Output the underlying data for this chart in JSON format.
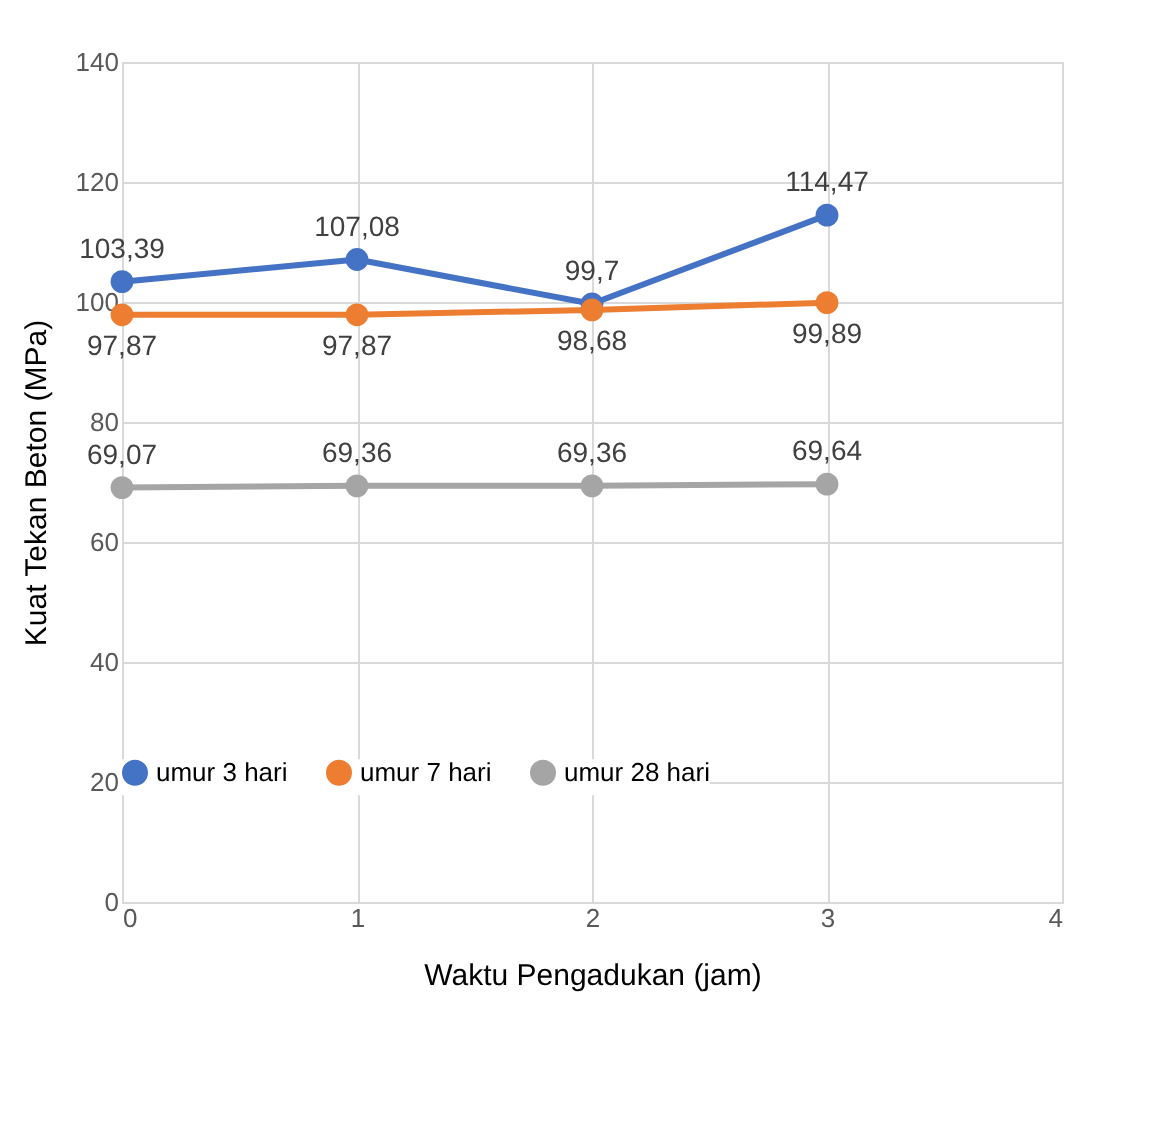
{
  "chart_data": {
    "type": "line",
    "xlabel": "Waktu Pengadukan (jam)",
    "ylabel": "Kuat Tekan Beton (MPa)",
    "x": [
      0,
      1,
      2,
      3
    ],
    "xlim": [
      0,
      4
    ],
    "xticks": [
      0,
      1,
      2,
      3,
      4
    ],
    "ylim": [
      0,
      140
    ],
    "yticks": [
      0,
      20,
      40,
      60,
      80,
      100,
      120,
      140
    ],
    "grid": true,
    "legend": "bottom",
    "marker": "circle",
    "line_style": "solid",
    "series": [
      {
        "name": "umur 3 hari",
        "color": "#4472c4",
        "values": [
          103.39,
          107.08,
          99.7,
          114.47
        ],
        "value_labels": [
          "103,39",
          "107,08",
          "99,7",
          "114,47"
        ]
      },
      {
        "name": "umur 7 hari",
        "color": "#ed7d31",
        "values": [
          97.87,
          97.87,
          98.68,
          99.89
        ],
        "value_labels": [
          "97,87",
          "97,87",
          "98,68",
          "99,89"
        ]
      },
      {
        "name": "umur 28 hari",
        "color": "#a5a5a5",
        "values": [
          69.07,
          69.36,
          69.36,
          69.64
        ],
        "value_labels": [
          "69,07",
          "69,36",
          "69,36",
          "69,64"
        ]
      }
    ]
  }
}
